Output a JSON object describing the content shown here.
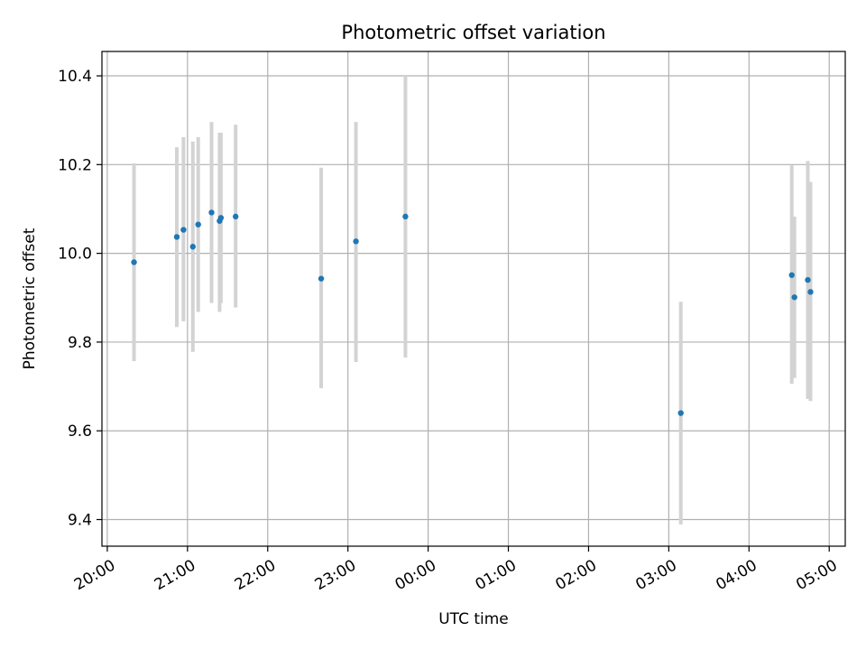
{
  "chart_data": {
    "type": "scatter",
    "title": "Photometric offset variation",
    "xlabel": "UTC time",
    "ylabel": "Photometric offset",
    "x_is_time": true,
    "xlim": [
      "19:56",
      "05:12"
    ],
    "ylim": [
      9.34,
      10.455
    ],
    "x_ticks": [
      "20:00",
      "21:00",
      "22:00",
      "23:00",
      "00:00",
      "01:00",
      "02:00",
      "03:00",
      "04:00",
      "05:00"
    ],
    "y_ticks": [
      9.4,
      9.6,
      9.8,
      10.0,
      10.2,
      10.4
    ],
    "y_tick_labels": [
      "9.4",
      "9.6",
      "9.8",
      "10.0",
      "10.2",
      "10.4"
    ],
    "grid": true,
    "legend": "none",
    "marker_color": "#1f77b4",
    "errorbar_color": "#d3d3d3",
    "points": [
      {
        "t": "20:20",
        "y": 9.98,
        "lo": 9.757,
        "hi": 10.203
      },
      {
        "t": "20:52",
        "y": 10.037,
        "lo": 9.834,
        "hi": 10.239
      },
      {
        "t": "20:57",
        "y": 10.053,
        "lo": 9.847,
        "hi": 10.262
      },
      {
        "t": "21:04",
        "y": 10.015,
        "lo": 9.778,
        "hi": 10.252
      },
      {
        "t": "21:08",
        "y": 10.065,
        "lo": 9.868,
        "hi": 10.262
      },
      {
        "t": "21:18",
        "y": 10.092,
        "lo": 9.888,
        "hi": 10.296
      },
      {
        "t": "21:24",
        "y": 10.073,
        "lo": 9.868,
        "hi": 10.272
      },
      {
        "t": "21:25",
        "y": 10.08,
        "lo": 9.888,
        "hi": 10.272
      },
      {
        "t": "21:36",
        "y": 10.083,
        "lo": 9.878,
        "hi": 10.29
      },
      {
        "t": "22:40",
        "y": 9.943,
        "lo": 9.696,
        "hi": 10.193
      },
      {
        "t": "23:06",
        "y": 10.027,
        "lo": 9.755,
        "hi": 10.296
      },
      {
        "t": "23:43",
        "y": 10.083,
        "lo": 9.765,
        "hi": 10.4
      },
      {
        "t": "03:09",
        "y": 9.64,
        "lo": 9.389,
        "hi": 9.891
      },
      {
        "t": "04:32",
        "y": 9.951,
        "lo": 9.706,
        "hi": 10.198
      },
      {
        "t": "04:34",
        "y": 9.901,
        "lo": 9.719,
        "hi": 10.083
      },
      {
        "t": "04:44",
        "y": 9.94,
        "lo": 9.672,
        "hi": 10.208
      },
      {
        "t": "04:46",
        "y": 9.913,
        "lo": 9.667,
        "hi": 10.161
      }
    ]
  }
}
